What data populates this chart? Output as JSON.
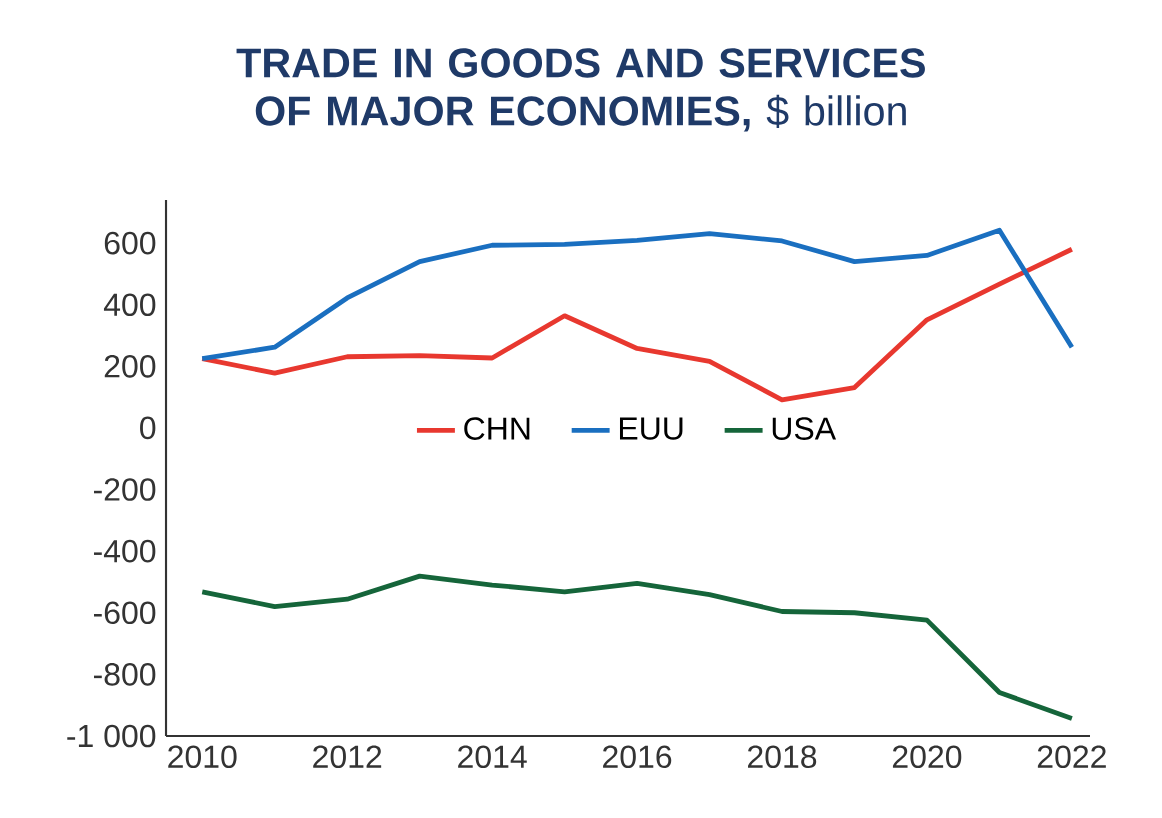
{
  "chart_data": {
    "type": "line",
    "title": "**TRADE IN GOODS AND SERVICES OF MAJOR ECONOMIES,** $ billion",
    "x": [
      2010,
      2011,
      2012,
      2013,
      2014,
      2015,
      2016,
      2017,
      2018,
      2019,
      2020,
      2021,
      2022
    ],
    "series": [
      {
        "name": "CHN",
        "color": "#e8382f",
        "values": [
          225,
          178,
          231,
          235,
          227,
          364,
          258,
          216,
          91,
          131,
          351,
          467,
          580
        ]
      },
      {
        "name": "EUU",
        "color": "#1a6fc0",
        "values": [
          225,
          262,
          422,
          540,
          593,
          596,
          609,
          631,
          607,
          540,
          560,
          642,
          262
        ]
      },
      {
        "name": "USA",
        "color": "#15653a",
        "values": [
          -532,
          -580,
          -556,
          -481,
          -510,
          -532,
          -505,
          -541,
          -596,
          -600,
          -624,
          -859,
          -943
        ]
      }
    ],
    "xlim": [
      2009.5,
      2022.25
    ],
    "xticks": [
      2010,
      2012,
      2014,
      2016,
      2018,
      2020,
      2022
    ],
    "ylim": [
      -1000,
      740
    ],
    "yticks": [
      {
        "value": -1000,
        "label": "-1 000"
      },
      -800,
      -600,
      -400,
      -200,
      0,
      200,
      400,
      600
    ],
    "grid": false,
    "legend": "center",
    "marker": "none",
    "line_style": "solid"
  }
}
